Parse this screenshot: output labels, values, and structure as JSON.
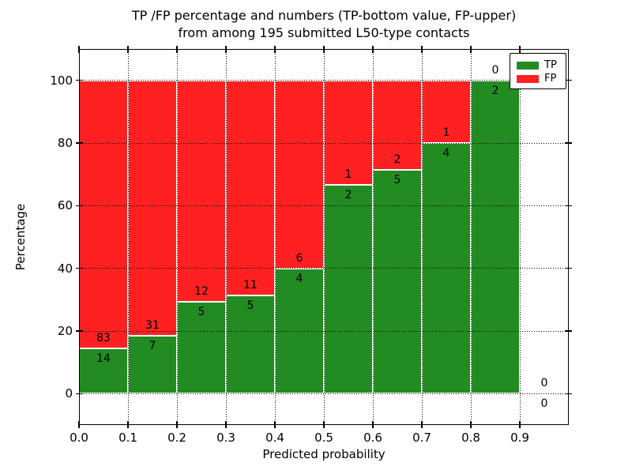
{
  "chart_data": {
    "type": "bar",
    "stacked": true,
    "title_line1": "TP /FP percentage and numbers (TP-bottom value, FP-upper)",
    "title_line2": "from among 195 submitted L50-type contacts",
    "xlabel": "Predicted probability",
    "ylabel": "Percentage",
    "xlim": [
      0.0,
      1.0
    ],
    "ylim": [
      -10,
      110
    ],
    "bin_width": 0.1,
    "grid": true,
    "x_ticks": [
      {
        "value": 0.0,
        "label": "0.0"
      },
      {
        "value": 0.1,
        "label": "0.1"
      },
      {
        "value": 0.2,
        "label": "0.2"
      },
      {
        "value": 0.3,
        "label": "0.3"
      },
      {
        "value": 0.4,
        "label": "0.4"
      },
      {
        "value": 0.5,
        "label": "0.5"
      },
      {
        "value": 0.6,
        "label": "0.6"
      },
      {
        "value": 0.7,
        "label": "0.7"
      },
      {
        "value": 0.8,
        "label": "0.8"
      },
      {
        "value": 0.9,
        "label": "0.9"
      }
    ],
    "y_ticks": [
      {
        "value": 0,
        "label": "0"
      },
      {
        "value": 20,
        "label": "20"
      },
      {
        "value": 40,
        "label": "40"
      },
      {
        "value": 60,
        "label": "60"
      },
      {
        "value": 80,
        "label": "80"
      },
      {
        "value": 100,
        "label": "100"
      }
    ],
    "bins": [
      {
        "x0": 0.0,
        "tp": 14,
        "fp": 83
      },
      {
        "x0": 0.1,
        "tp": 7,
        "fp": 31
      },
      {
        "x0": 0.2,
        "tp": 5,
        "fp": 12
      },
      {
        "x0": 0.3,
        "tp": 5,
        "fp": 11
      },
      {
        "x0": 0.4,
        "tp": 4,
        "fp": 6
      },
      {
        "x0": 0.5,
        "tp": 2,
        "fp": 1
      },
      {
        "x0": 0.6,
        "tp": 5,
        "fp": 2
      },
      {
        "x0": 0.7,
        "tp": 4,
        "fp": 1
      },
      {
        "x0": 0.8,
        "tp": 2,
        "fp": 0
      },
      {
        "x0": 0.9,
        "tp": 0,
        "fp": 0
      }
    ],
    "legend": [
      {
        "label": "TP",
        "color": "#228B22"
      },
      {
        "label": "FP",
        "color": "#FF2121"
      }
    ],
    "legend_position": "upper right",
    "colors": {
      "tp": "#228B22",
      "fp": "#FF2121",
      "bar_edge": "#ffffff",
      "grid": "#000000",
      "frame": "#000000",
      "background": "#ffffff"
    }
  }
}
